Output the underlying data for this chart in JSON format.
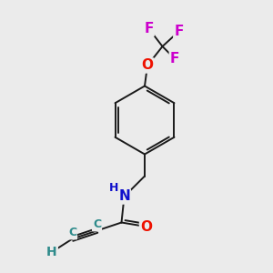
{
  "background_color": "#ebebeb",
  "bond_color": "#1a1a1a",
  "atom_colors": {
    "F": "#cc00cc",
    "O": "#ee1100",
    "N": "#1111cc",
    "C": "#2e8b8b",
    "H": "#2e8b8b"
  },
  "lw": 1.4,
  "fs_large": 11,
  "fs_medium": 10,
  "fs_small": 9
}
